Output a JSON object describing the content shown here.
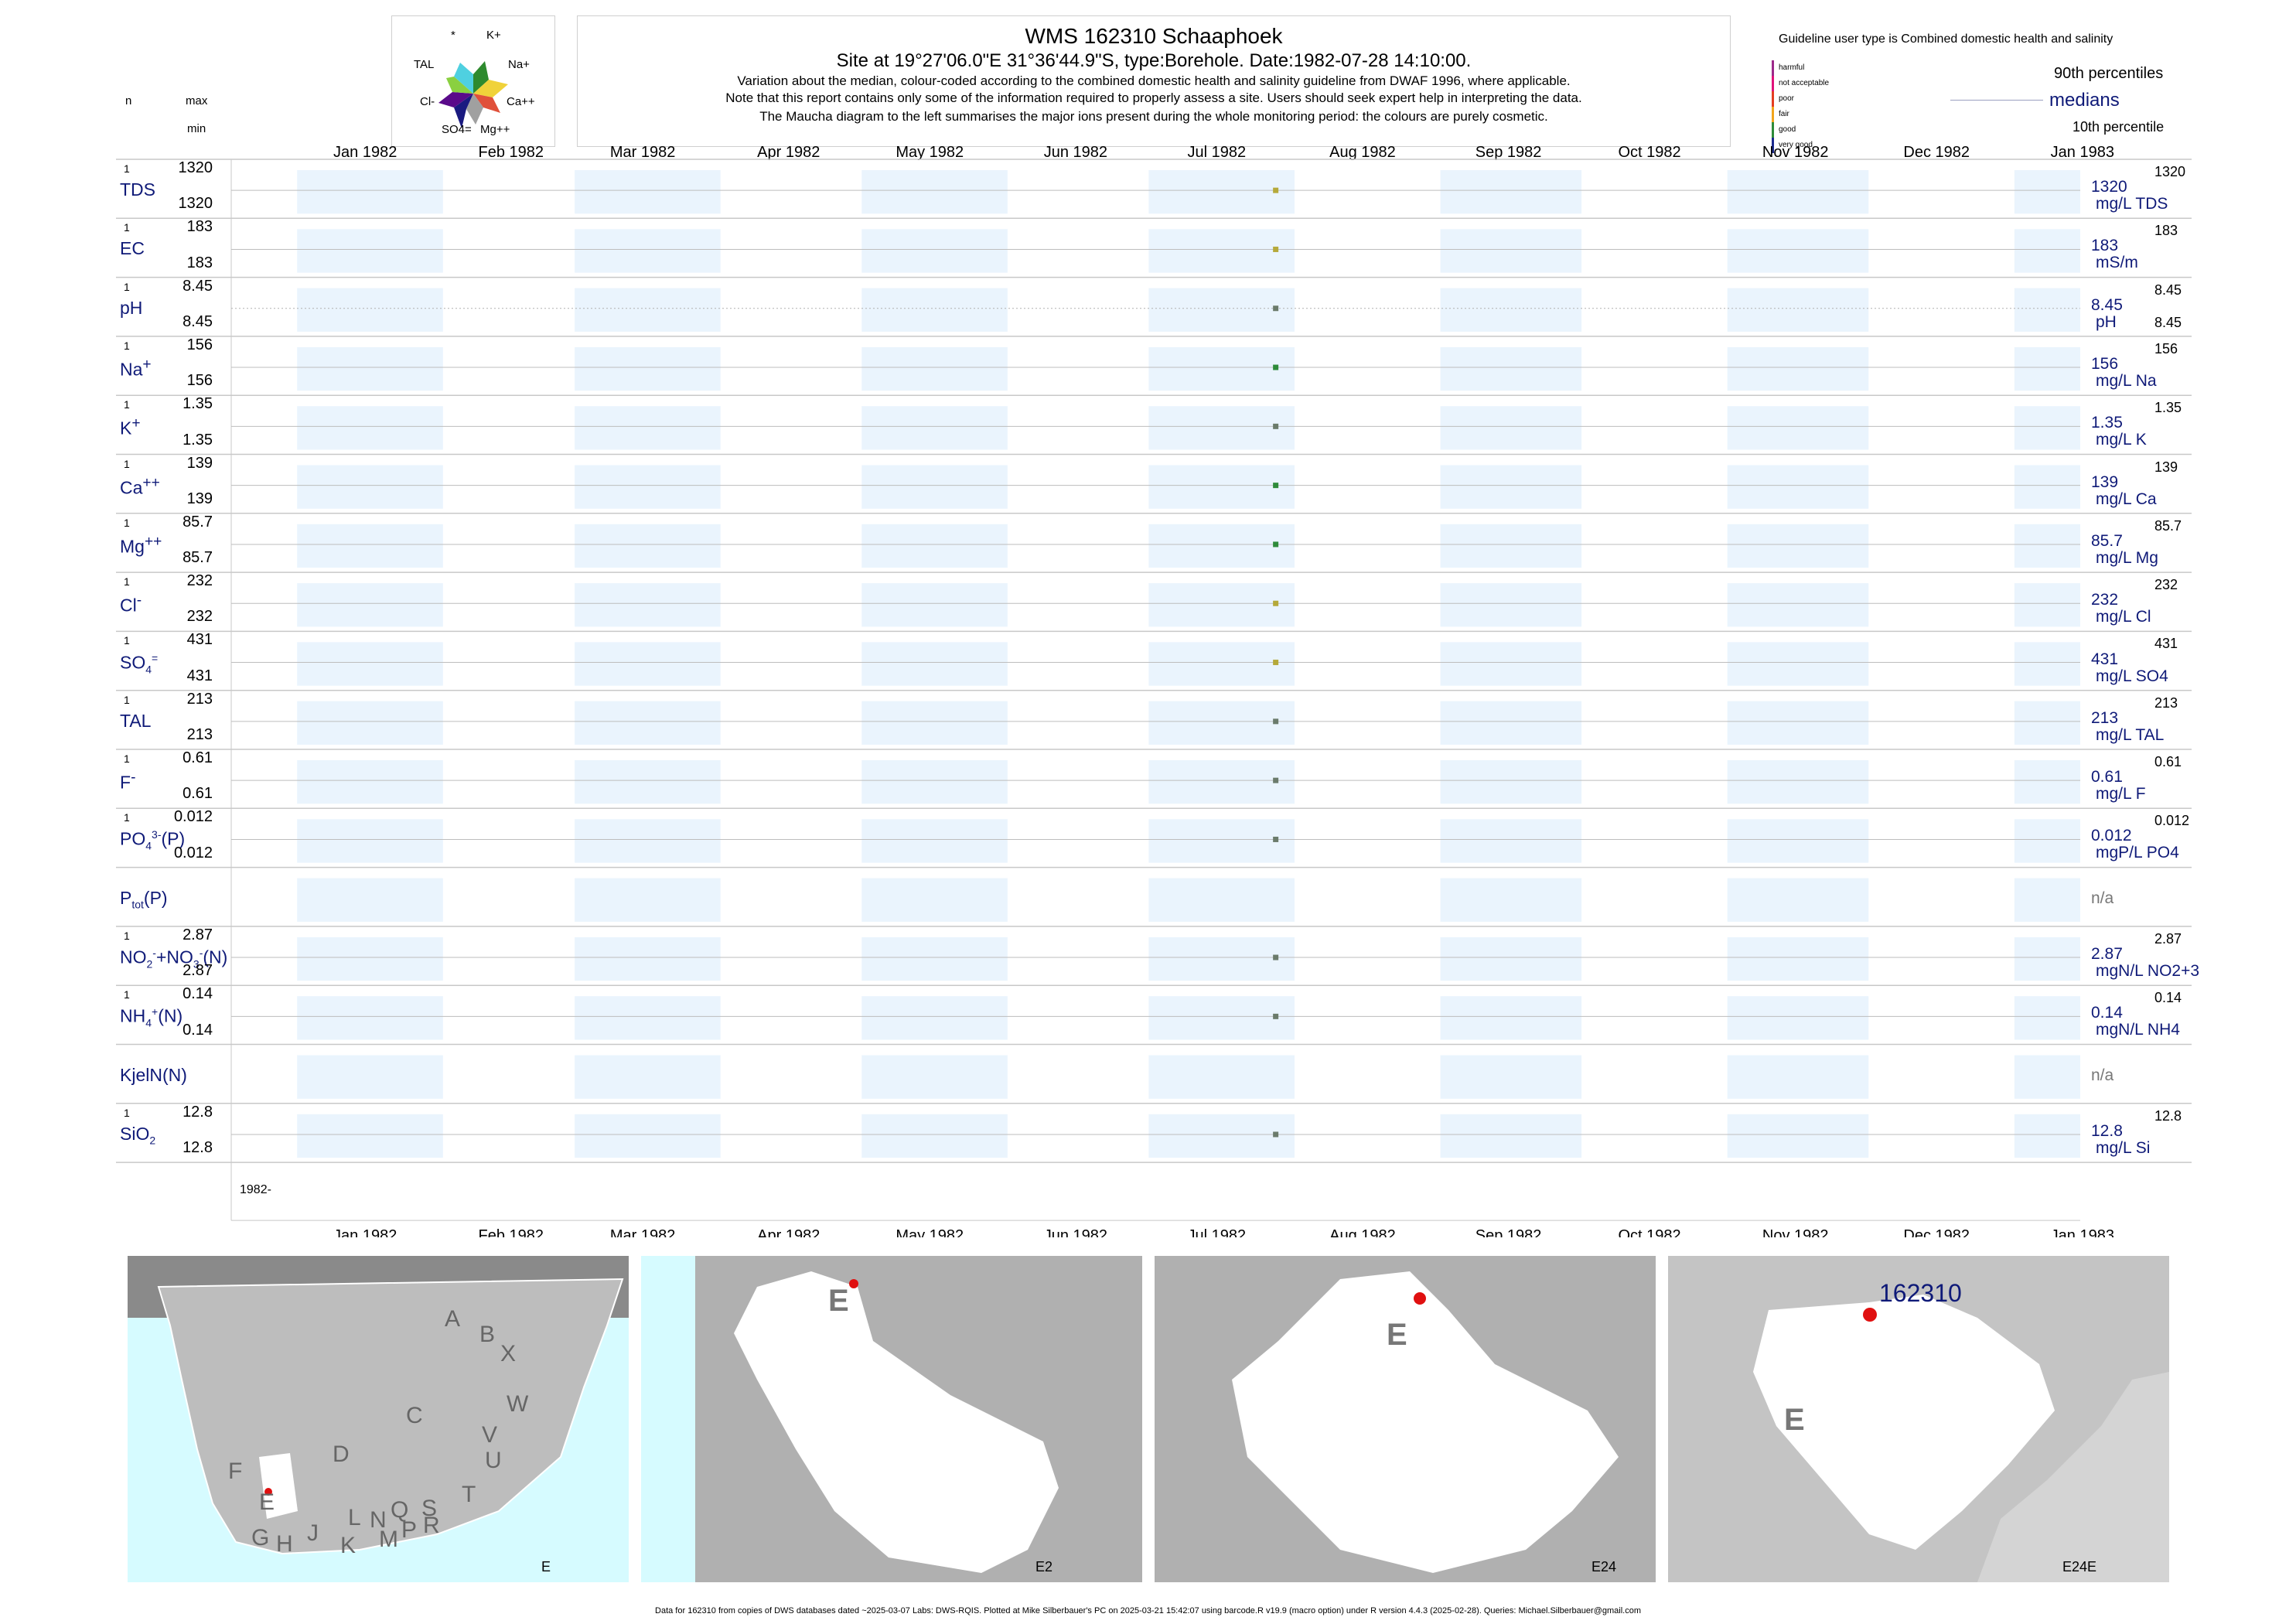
{
  "header": {
    "title": "WMS 162310  Schaaphoek",
    "subtitle": "Site at 19°27'06.0\"E 31°36'44.9\"S, type:Borehole. Date:1982-07-28 14:10:00.",
    "note1": "Variation about the median,  colour-coded according to the combined domestic health and salinity guideline from DWAF 1996, where applicable.",
    "note2": "Note that this report contains only some of the information required to properly assess a site. Users should seek expert help in interpreting the data.",
    "note3": "The Maucha diagram to the left summarises the major ions present during the whole monitoring period: the colours are purely cosmetic."
  },
  "maucha": {
    "labels": [
      "*",
      "K+",
      "Na+",
      "Ca++",
      "Mg++",
      "SO4=",
      "Cl-",
      "TAL"
    ]
  },
  "left_header": {
    "n": "n",
    "max": "max",
    "min": "min"
  },
  "guideline": {
    "title": "Guideline user type is Combined domestic health and salinity",
    "levels": [
      {
        "label": "harmful",
        "color": "#9c2a8a"
      },
      {
        "label": "not acceptable",
        "color": "#e0137a"
      },
      {
        "label": "poor",
        "color": "#e43d22"
      },
      {
        "label": "fair",
        "color": "#f2a51c"
      },
      {
        "label": "good",
        "color": "#2e8b3a"
      },
      {
        "label": "very good",
        "color": "#1b2a8f"
      }
    ],
    "p90": "90th percentiles",
    "medians": "medians",
    "p10": "10th percentile"
  },
  "chart_data": {
    "type": "scatter",
    "x_axis": {
      "ticks": [
        "Jan 1982",
        "Feb 1982",
        "Mar 1982",
        "Apr 1982",
        "May 1982",
        "Jun 1982",
        "Jul 1982",
        "Aug 1982",
        "Sep 1982",
        "Oct 1982",
        "Nov 1982",
        "Dec 1982",
        "Jan 1983"
      ],
      "range": [
        "1981-12-18",
        "1983-01-15"
      ],
      "bottom_year_label": "1982-"
    },
    "sample_date": "1982-07-28",
    "series": [
      {
        "name": "TDS",
        "n": "1",
        "max": "1320",
        "min": "1320",
        "value": 1320,
        "median": "1320",
        "unit": "mg/L TDS",
        "p90": "1320",
        "p10": "",
        "color": "#b5a93a"
      },
      {
        "name": "EC",
        "n": "1",
        "max": "183",
        "min": "183",
        "value": 183,
        "median": "183",
        "unit": "mS/m",
        "p90": "183",
        "p10": "",
        "color": "#b5a93a"
      },
      {
        "name": "pH",
        "n": "1",
        "max": "8.45",
        "min": "8.45",
        "value": 8.45,
        "median": "8.45",
        "unit": "pH",
        "p90": "8.45",
        "p10": "8.45",
        "color": "#6b7b6b"
      },
      {
        "name": "Na+",
        "n": "1",
        "max": "156",
        "min": "156",
        "value": 156,
        "median": "156",
        "unit": "mg/L Na",
        "p90": "156",
        "p10": "",
        "color": "#2e8b3a"
      },
      {
        "name": "K+",
        "n": "1",
        "max": "1.35",
        "min": "1.35",
        "value": 1.35,
        "median": "1.35",
        "unit": "mg/L K",
        "p90": "1.35",
        "p10": "",
        "color": "#6b7b6b"
      },
      {
        "name": "Ca++",
        "n": "1",
        "max": "139",
        "min": "139",
        "value": 139,
        "median": "139",
        "unit": "mg/L Ca",
        "p90": "139",
        "p10": "",
        "color": "#2e8b3a"
      },
      {
        "name": "Mg++",
        "n": "1",
        "max": "85.7",
        "min": "85.7",
        "value": 85.7,
        "median": "85.7",
        "unit": "mg/L Mg",
        "p90": "85.7",
        "p10": "",
        "color": "#2e8b3a"
      },
      {
        "name": "Cl-",
        "n": "1",
        "max": "232",
        "min": "232",
        "value": 232,
        "median": "232",
        "unit": "mg/L Cl",
        "p90": "232",
        "p10": "",
        "color": "#b5a93a"
      },
      {
        "name": "SO4=",
        "n": "1",
        "max": "431",
        "min": "431",
        "value": 431,
        "median": "431",
        "unit": "mg/L SO4",
        "p90": "431",
        "p10": "",
        "color": "#b5a93a"
      },
      {
        "name": "TAL",
        "n": "1",
        "max": "213",
        "min": "213",
        "value": 213,
        "median": "213",
        "unit": "mg/L TAL",
        "p90": "213",
        "p10": "",
        "color": "#6b7b6b"
      },
      {
        "name": "F-",
        "n": "1",
        "max": "0.61",
        "min": "0.61",
        "value": 0.61,
        "median": "0.61",
        "unit": "mg/L F",
        "p90": "0.61",
        "p10": "",
        "color": "#6b7b6b"
      },
      {
        "name": "PO43-(P)",
        "n": "1",
        "max": "0.012",
        "min": "0.012",
        "value": 0.012,
        "median": "0.012",
        "unit": "mgP/L PO4",
        "p90": "0.012",
        "p10": "",
        "color": "#6b7b6b"
      },
      {
        "name": "Ptot(P)",
        "n": "",
        "max": "",
        "min": "",
        "value": null,
        "median": "n/a",
        "unit": "",
        "p90": "",
        "p10": "",
        "color": "#6b7b6b"
      },
      {
        "name": "NO2-+NO3-(N)",
        "n": "1",
        "max": "2.87",
        "min": "2.87",
        "value": 2.87,
        "median": "2.87",
        "unit": "mgN/L NO2+3",
        "p90": "2.87",
        "p10": "",
        "color": "#6b7b6b"
      },
      {
        "name": "NH4+(N)",
        "n": "1",
        "max": "0.14",
        "min": "0.14",
        "value": 0.14,
        "median": "0.14",
        "unit": "mgN/L NH4",
        "p90": "0.14",
        "p10": "",
        "color": "#6b7b6b"
      },
      {
        "name": "KjelN(N)",
        "n": "",
        "max": "",
        "min": "",
        "value": null,
        "median": "n/a",
        "unit": "",
        "p90": "",
        "p10": "",
        "color": "#6b7b6b"
      },
      {
        "name": "SiO2",
        "n": "1",
        "max": "12.8",
        "min": "12.8",
        "value": 12.8,
        "median": "12.8",
        "unit": "mg/L Si",
        "p90": "12.8",
        "p10": "",
        "color": "#6b7b6b"
      }
    ]
  },
  "maps": [
    {
      "label": "E",
      "letters": [
        "A",
        "B",
        "X",
        "W",
        "C",
        "D",
        "V",
        "U",
        "T",
        "F",
        "E",
        "G",
        "H",
        "J",
        "L",
        "N",
        "Q",
        "S",
        "R",
        "K",
        "M",
        "P"
      ]
    },
    {
      "label": "E2",
      "region": "E"
    },
    {
      "label": "E24",
      "region": "E"
    },
    {
      "label": "E24E",
      "region": "E",
      "site": "162310"
    }
  ],
  "footer": "Data for 162310 from copies of DWS databases dated ~2025-03-07 Labs: DWS-RQIS. Plotted at Mike Silberbauer's PC on 2025-03-21 15:42:07 using barcode.R v19.9 (macro option) under R version 4.4.3 (2025-02-28). Queries: Michael.Silberbauer@gmail.com"
}
